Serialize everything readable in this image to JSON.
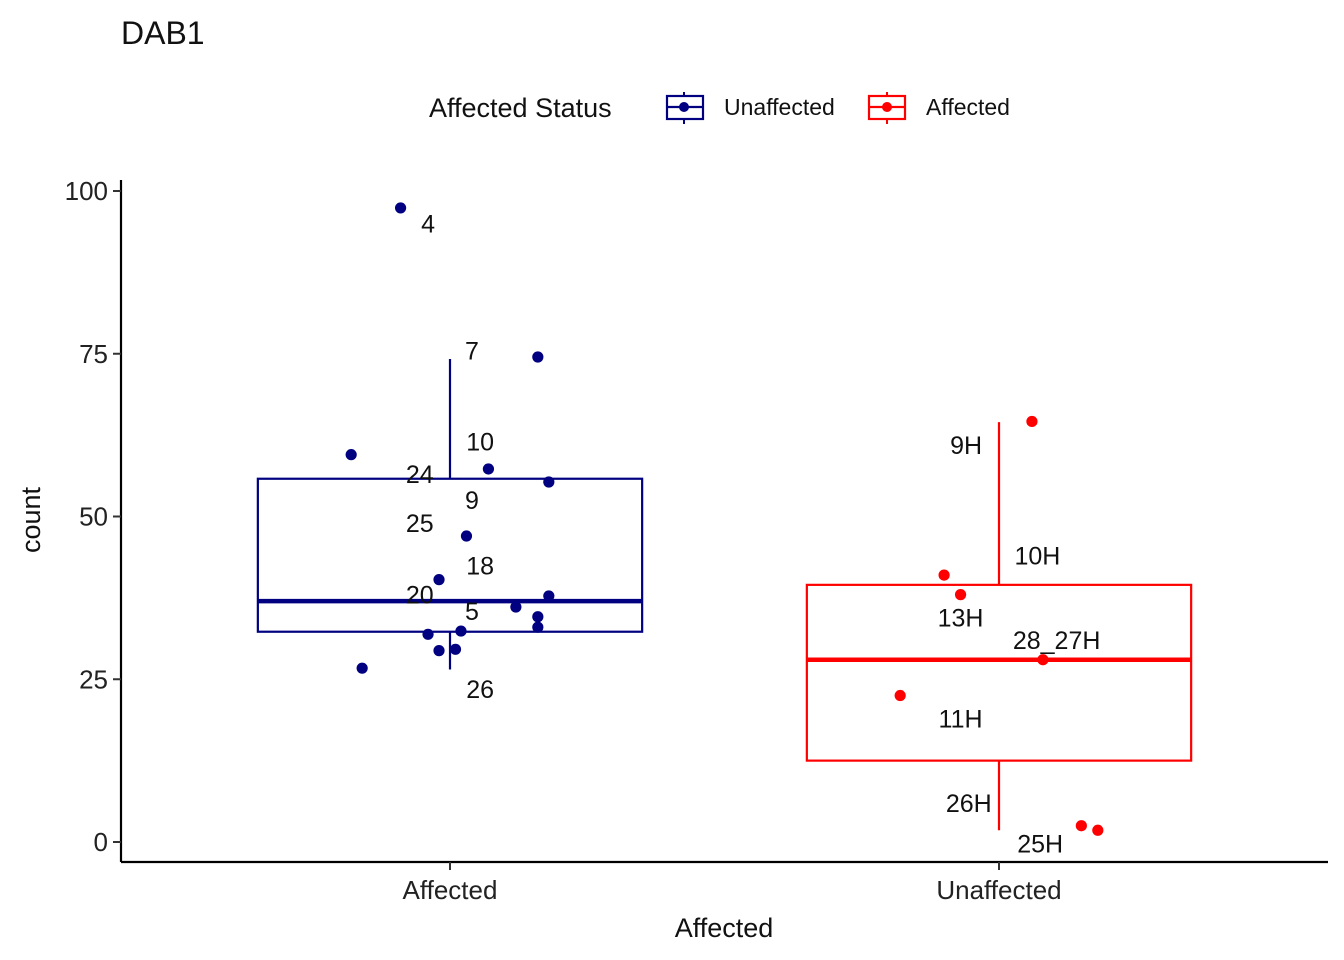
{
  "chart_data": {
    "type": "boxplot",
    "title": "DAB1",
    "xlabel": "Affected",
    "ylabel": "count",
    "ylim": [
      0,
      100
    ],
    "yticks": [
      0,
      25,
      50,
      75,
      100
    ],
    "categories": [
      "Affected",
      "Unaffected"
    ],
    "legend": {
      "title": "Affected Status",
      "position": "top",
      "entries": [
        {
          "label": "Unaffected",
          "color": "#000080"
        },
        {
          "label": "Affected",
          "color": "#ff0000"
        }
      ]
    },
    "series": [
      {
        "name": "Unaffected",
        "category": "Affected",
        "color": "#000080",
        "box": {
          "lower_whisker": 26.5,
          "q1": 32.3,
          "median": 37.0,
          "q3": 55.8,
          "upper_whisker": 74.2
        },
        "points": [
          {
            "x_jitter": -0.09,
            "y": 97.4
          },
          {
            "x_jitter": 0.16,
            "y": 74.5
          },
          {
            "x_jitter": -0.18,
            "y": 59.5
          },
          {
            "x_jitter": 0.07,
            "y": 57.3
          },
          {
            "x_jitter": 0.18,
            "y": 55.3
          },
          {
            "x_jitter": 0.03,
            "y": 47.0
          },
          {
            "x_jitter": -0.02,
            "y": 40.3
          },
          {
            "x_jitter": 0.18,
            "y": 37.8
          },
          {
            "x_jitter": 0.12,
            "y": 36.1
          },
          {
            "x_jitter": 0.16,
            "y": 34.6
          },
          {
            "x_jitter": 0.16,
            "y": 33.0
          },
          {
            "x_jitter": 0.02,
            "y": 32.4
          },
          {
            "x_jitter": -0.04,
            "y": 31.9
          },
          {
            "x_jitter": -0.02,
            "y": 29.4
          },
          {
            "x_jitter": 0.01,
            "y": 29.6
          },
          {
            "x_jitter": -0.16,
            "y": 26.7
          }
        ],
        "labels": [
          {
            "text": "4",
            "x_off": -0.04,
            "y": 95.0
          },
          {
            "text": "7",
            "x_off": 0.04,
            "y": 75.5
          },
          {
            "text": "10",
            "x_off": 0.055,
            "y": 61.5
          },
          {
            "text": "24",
            "x_off": -0.055,
            "y": 56.5
          },
          {
            "text": "9",
            "x_off": 0.04,
            "y": 52.5
          },
          {
            "text": "25",
            "x_off": -0.055,
            "y": 49.0
          },
          {
            "text": "18",
            "x_off": 0.055,
            "y": 42.5
          },
          {
            "text": "20",
            "x_off": -0.055,
            "y": 38.0
          },
          {
            "text": "5",
            "x_off": 0.04,
            "y": 35.5
          },
          {
            "text": "26",
            "x_off": 0.055,
            "y": 23.5
          }
        ]
      },
      {
        "name": "Affected",
        "category": "Unaffected",
        "color": "#ff0000",
        "box": {
          "lower_whisker": 1.8,
          "q1": 12.5,
          "median": 28.0,
          "q3": 39.5,
          "upper_whisker": 64.5
        },
        "points": [
          {
            "x_jitter": 0.06,
            "y": 64.6
          },
          {
            "x_jitter": -0.1,
            "y": 41.0
          },
          {
            "x_jitter": -0.07,
            "y": 38.0
          },
          {
            "x_jitter": 0.08,
            "y": 28.0
          },
          {
            "x_jitter": -0.18,
            "y": 22.5
          },
          {
            "x_jitter": 0.15,
            "y": 2.5
          },
          {
            "x_jitter": 0.18,
            "y": 1.8
          }
        ],
        "labels": [
          {
            "text": "9H",
            "x_off": -0.06,
            "y": 61.0
          },
          {
            "text": "10H",
            "x_off": 0.07,
            "y": 44.0
          },
          {
            "text": "13H",
            "x_off": -0.07,
            "y": 34.5
          },
          {
            "text": "28_27H",
            "x_off": 0.105,
            "y": 31.0
          },
          {
            "text": "11H",
            "x_off": -0.07,
            "y": 19.0
          },
          {
            "text": "26H",
            "x_off": -0.055,
            "y": 6.0
          },
          {
            "text": "25H",
            "x_off": 0.075,
            "y": -0.2
          }
        ]
      }
    ]
  }
}
